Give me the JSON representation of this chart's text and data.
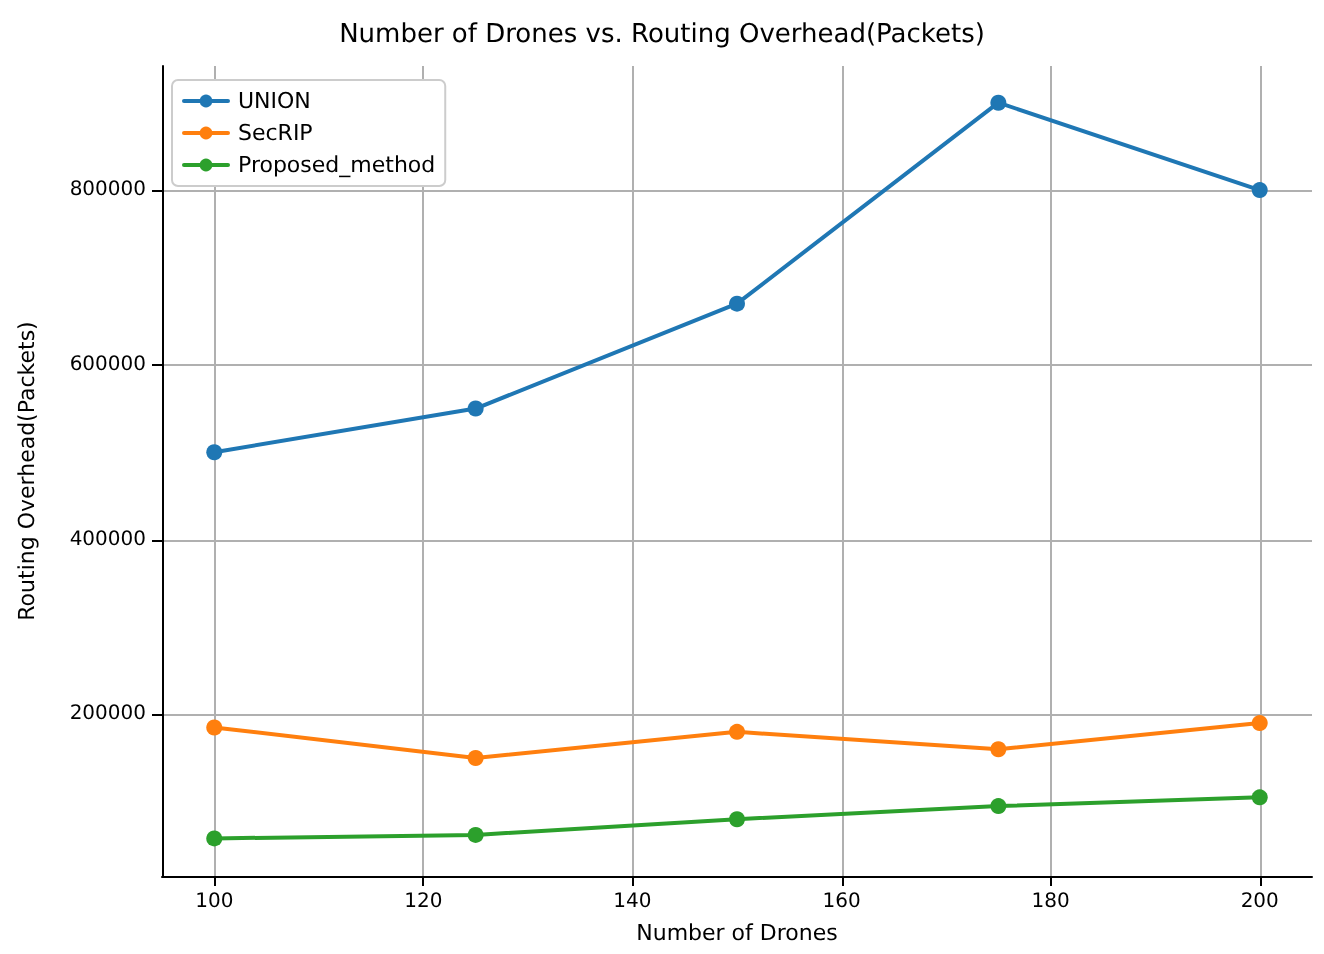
{
  "chart_data": {
    "type": "line",
    "title": "Number of Drones vs. Routing Overhead(Packets)",
    "xlabel": "Number of Drones",
    "ylabel": "Routing Overhead(Packets)",
    "x": [
      100,
      125,
      150,
      175,
      200
    ],
    "series": [
      {
        "name": "UNION",
        "color": "#1f77b4",
        "values": [
          500000,
          550000,
          670000,
          900000,
          800000
        ]
      },
      {
        "name": "SecRIP",
        "color": "#ff7f0e",
        "values": [
          185000,
          150000,
          180000,
          160000,
          190000
        ]
      },
      {
        "name": "Proposed_method",
        "color": "#2ca02c",
        "values": [
          58000,
          62000,
          80000,
          95000,
          105000
        ]
      }
    ],
    "xlim": [
      95,
      205
    ],
    "xticks": [
      100,
      120,
      140,
      160,
      180,
      200
    ],
    "ylim": [
      15000,
      942000
    ],
    "yticks": [
      200000,
      400000,
      600000,
      800000
    ],
    "grid": true,
    "legend": "top left",
    "marker": "circle",
    "line_style": "solid"
  }
}
